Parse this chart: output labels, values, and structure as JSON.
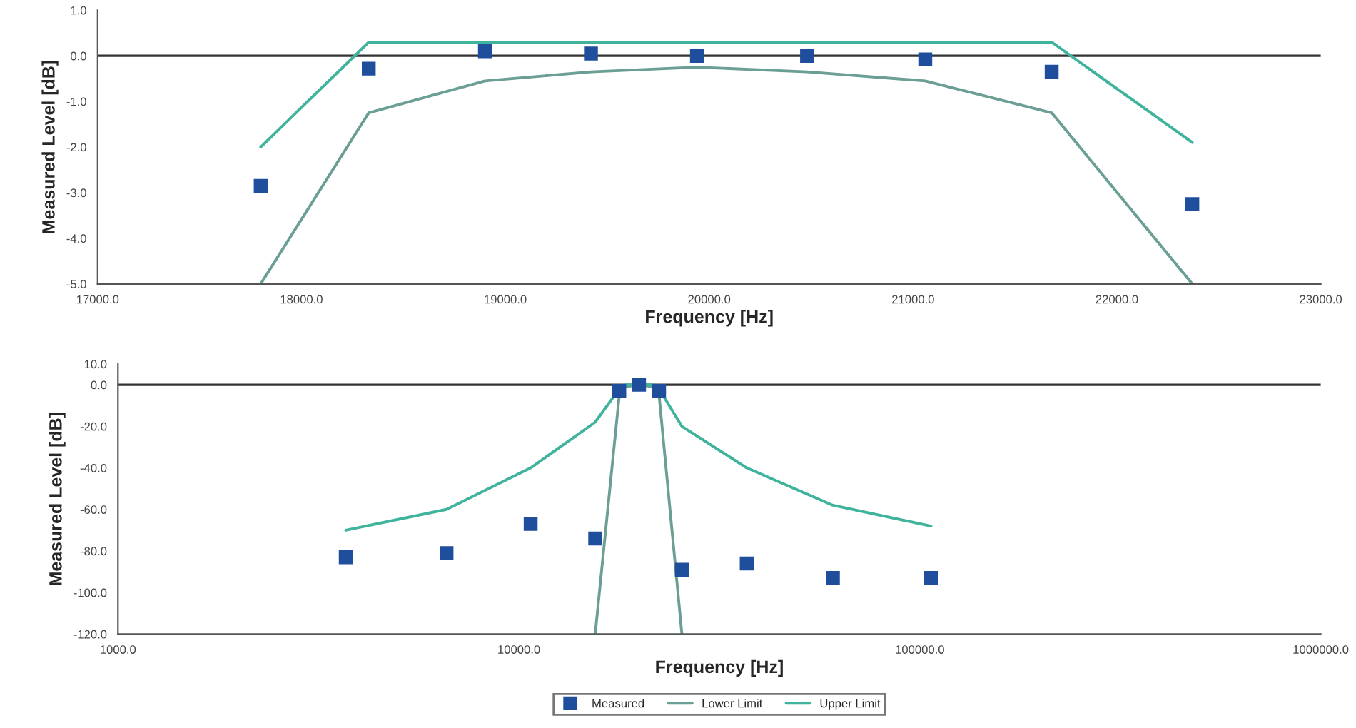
{
  "chart_data": [
    {
      "type": "line",
      "xlabel": "Frequency [Hz]",
      "ylabel": "Measured Level [dB]",
      "xlim": [
        17000,
        23000
      ],
      "xticks": [
        {
          "value": 17000,
          "label": "17000.0"
        },
        {
          "value": 18000,
          "label": "18000.0"
        },
        {
          "value": 19000,
          "label": "19000.0"
        },
        {
          "value": 20000,
          "label": "20000.0"
        },
        {
          "value": 21000,
          "label": "21000.0"
        },
        {
          "value": 22000,
          "label": "22000.0"
        },
        {
          "value": 23000,
          "label": "23000.0"
        }
      ],
      "ylim": [
        -5,
        1
      ],
      "yticks": [
        {
          "value": 1,
          "label": "1.0"
        },
        {
          "value": 0,
          "label": "0.0"
        },
        {
          "value": -1,
          "label": "-1.0"
        },
        {
          "value": -2,
          "label": "-2.0"
        },
        {
          "value": -3,
          "label": "-3.0"
        },
        {
          "value": -4,
          "label": "-4.0"
        },
        {
          "value": -5,
          "label": "-5.0"
        }
      ],
      "grid": false,
      "legend": false,
      "ref_lines": [
        {
          "axis": "y",
          "value": 0,
          "color": "#333333"
        }
      ],
      "series": [
        {
          "type": "scatter",
          "marker": "square",
          "color": "#1f4e9c",
          "x": [
            17800,
            18330,
            18900,
            19420,
            19940,
            20480,
            21060,
            21680,
            22370
          ],
          "values": [
            -2.85,
            -0.28,
            0.1,
            0.05,
            0.0,
            0.0,
            -0.08,
            -0.35,
            -3.25
          ]
        },
        {
          "color": "#6b9e94",
          "x": [
            17800,
            18330,
            18900,
            19420,
            19940,
            20480,
            21060,
            21680,
            22370
          ],
          "values": [
            -5.0,
            -1.25,
            -0.55,
            -0.35,
            -0.25,
            -0.35,
            -0.55,
            -1.25,
            -5.0
          ]
        },
        {
          "color": "#3fb39b",
          "x": [
            17800,
            18330,
            21680,
            22370
          ],
          "values": [
            -2.0,
            0.3,
            0.3,
            -1.9
          ]
        }
      ]
    },
    {
      "type": "line",
      "xlabel": "Frequency [Hz]",
      "ylabel": "Measured Level [dB]",
      "log": "x",
      "xlim": [
        1000,
        1000000
      ],
      "xticks": [
        {
          "value": 1000,
          "label": "1000.0"
        },
        {
          "value": 10000,
          "label": "10000.0"
        },
        {
          "value": 100000,
          "label": "100000.0"
        },
        {
          "value": 1000000,
          "label": "1000000.0"
        }
      ],
      "ylim": [
        -120,
        10
      ],
      "yticks": [
        {
          "value": 10,
          "label": "10.0"
        },
        {
          "value": 0,
          "label": "0.0"
        },
        {
          "value": -20,
          "label": "-20.0"
        },
        {
          "value": -40,
          "label": "-40.0"
        },
        {
          "value": -60,
          "label": "-60.0"
        },
        {
          "value": -80,
          "label": "-80.0"
        },
        {
          "value": -100,
          "label": "-100.0"
        },
        {
          "value": -120,
          "label": "-120.0"
        }
      ],
      "grid": false,
      "legend": "bottom",
      "ref_lines": [
        {
          "axis": "y",
          "value": 0,
          "color": "#333333"
        }
      ],
      "series": [
        {
          "name": "Measured",
          "type": "scatter",
          "marker": "square",
          "color": "#1f4e9c",
          "x": [
            3700,
            6600,
            10700,
            15500,
            17800,
            19940,
            22370,
            25500,
            37000,
            60700,
            106600
          ],
          "values": [
            -83,
            -81,
            -67,
            -74,
            -3,
            0,
            -3,
            -89,
            -86,
            -93,
            -93
          ]
        },
        {
          "name": "Lower Limit",
          "color": "#6b9e94",
          "x": [
            15500,
            17800,
            18330,
            19940,
            21680,
            22370,
            25500
          ],
          "values": [
            -120,
            -5,
            -1,
            0,
            -1,
            -5,
            -120
          ]
        },
        {
          "name": "Upper Limit",
          "color": "#3fb39b",
          "x": [
            3700,
            6600,
            10700,
            15500,
            17800,
            18330,
            21680,
            22370,
            25500,
            37000,
            60700,
            106600
          ],
          "values": [
            -70,
            -60,
            -40,
            -18,
            -2,
            0,
            0,
            -2,
            -20,
            -40,
            -58,
            -68
          ]
        }
      ]
    }
  ]
}
